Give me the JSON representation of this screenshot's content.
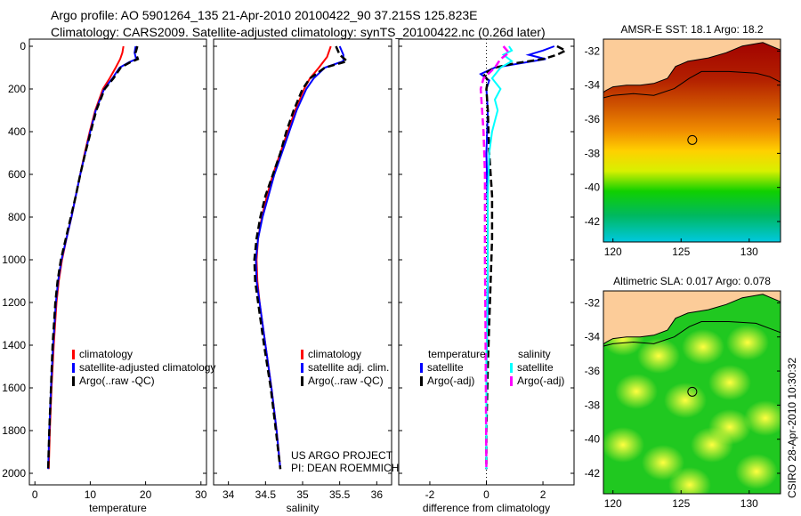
{
  "title_line1": "Argo profile: AO 5901264_135 21-Apr-2010 20100422_90 37.215S 125.823E",
  "title_line2": "Climatology: CARS2009. Satellite-adjusted climatology: synTS_20100422.nc (0.26d later)",
  "footer_stamp": "CSIRO 28-Apr-2010 10:30:32",
  "annotation": {
    "project": "US ARGO PROJECT",
    "pi": "PI: DEAN ROEMMICH"
  },
  "chart_data": [
    {
      "type": "line",
      "name": "temperature",
      "xlabel": "temperature",
      "ylabel": "",
      "xlim": [
        -1,
        31
      ],
      "ylim": [
        2000,
        0
      ],
      "xticks": [
        0,
        10,
        20,
        30
      ],
      "yticks": [
        0,
        200,
        400,
        600,
        800,
        1000,
        1200,
        1400,
        1600,
        1800,
        2000
      ],
      "legend": [
        "climatology",
        "satellite-adjusted climatology",
        "Argo(..raw -QC)"
      ],
      "series": [
        {
          "name": "climatology",
          "color": "#ff0000",
          "style": "solid",
          "depth": [
            0,
            30,
            60,
            100,
            150,
            200,
            300,
            400,
            500,
            600,
            700,
            800,
            900,
            1000,
            1100,
            1200,
            1400,
            1600,
            1800,
            1980
          ],
          "values": [
            16,
            15.8,
            15.4,
            14.6,
            13.5,
            12.3,
            10.9,
            9.9,
            9.0,
            8.2,
            7.4,
            6.6,
            5.7,
            4.9,
            4.3,
            3.9,
            3.4,
            3.0,
            2.7,
            2.5
          ]
        },
        {
          "name": "satellite-adjusted climatology",
          "color": "#0000ff",
          "style": "solid",
          "depth": [
            0,
            30,
            60,
            75,
            100,
            150,
            200,
            300,
            400,
            500,
            600,
            700,
            800,
            900,
            1000,
            1100,
            1200,
            1400,
            1600,
            1800,
            1980
          ],
          "values": [
            18.2,
            18.0,
            18.3,
            17.0,
            15.3,
            14.0,
            12.5,
            11.0,
            10.0,
            9.1,
            8.2,
            7.4,
            6.6,
            5.7,
            4.8,
            4.2,
            3.8,
            3.3,
            2.9,
            2.6,
            2.4
          ]
        },
        {
          "name": "Argo(..raw -QC)",
          "color": "#000000",
          "style": "dashed",
          "depth": [
            0,
            30,
            60,
            75,
            100,
            150,
            200,
            300,
            400,
            500,
            600,
            700,
            800,
            900,
            1000,
            1100,
            1200,
            1400,
            1600,
            1800,
            1980
          ],
          "values": [
            18.5,
            18.2,
            18.6,
            17.2,
            15.5,
            14.2,
            12.6,
            11.1,
            10.1,
            9.1,
            8.2,
            7.4,
            6.5,
            5.6,
            4.7,
            4.1,
            3.7,
            3.2,
            2.9,
            2.6,
            2.4
          ]
        }
      ]
    },
    {
      "type": "line",
      "name": "salinity",
      "xlabel": "salinity",
      "xlim": [
        33.8,
        36.2
      ],
      "ylim": [
        2000,
        0
      ],
      "xticks": [
        34,
        34.5,
        35,
        35.5,
        36
      ],
      "legend": [
        "climatology",
        "satellite adj. clim.",
        "Argo(..raw -QC)"
      ],
      "series": [
        {
          "name": "climatology",
          "color": "#ff0000",
          "style": "solid",
          "depth": [
            0,
            50,
            100,
            150,
            200,
            300,
            400,
            500,
            600,
            700,
            800,
            900,
            1000,
            1100,
            1200,
            1400,
            1600,
            1800,
            1980
          ],
          "values": [
            35.38,
            35.33,
            35.22,
            35.1,
            35.02,
            34.9,
            34.8,
            34.7,
            34.6,
            34.52,
            34.45,
            34.4,
            34.38,
            34.39,
            34.42,
            34.5,
            34.58,
            34.65,
            34.7
          ]
        },
        {
          "name": "satellite adj. clim.",
          "color": "#0000ff",
          "style": "solid",
          "depth": [
            0,
            40,
            70,
            100,
            150,
            200,
            300,
            400,
            500,
            600,
            700,
            800,
            900,
            1000,
            1100,
            1200,
            1400,
            1600,
            1800,
            1980
          ],
          "values": [
            35.5,
            35.55,
            35.55,
            35.3,
            35.15,
            35.05,
            34.92,
            34.82,
            34.72,
            34.62,
            34.54,
            34.46,
            34.4,
            34.37,
            34.38,
            34.42,
            34.5,
            34.58,
            34.65,
            34.7
          ]
        },
        {
          "name": "Argo(..raw -QC)",
          "color": "#000000",
          "style": "dashed",
          "depth": [
            0,
            40,
            70,
            100,
            150,
            200,
            300,
            400,
            500,
            600,
            700,
            800,
            900,
            1000,
            1100,
            1200,
            1400,
            1600,
            1800,
            1980
          ],
          "values": [
            35.45,
            35.5,
            35.6,
            35.3,
            35.1,
            35.0,
            34.88,
            34.78,
            34.7,
            34.6,
            34.5,
            34.43,
            34.38,
            34.35,
            34.36,
            34.4,
            34.48,
            34.57,
            34.64,
            34.7
          ]
        }
      ]
    },
    {
      "type": "line",
      "name": "difference",
      "xlabel": "difference from climatology",
      "xlim": [
        -3.1,
        3.1
      ],
      "ylim": [
        2000,
        0
      ],
      "xticks": [
        -2,
        0,
        2
      ],
      "legend_temperature_title": "temperature",
      "legend_salinity_title": "salinity",
      "legend": [
        "satellite",
        "Argo(-adj)",
        "satellite",
        "Argo(-adj)"
      ],
      "series": [
        {
          "name": "temperature satellite",
          "color": "#0000ff",
          "style": "solid",
          "depth": [
            0,
            20,
            40,
            60,
            80,
            100,
            130,
            160,
            200,
            300,
            500,
            800,
            1000,
            1200,
            1500,
            1800,
            1980
          ],
          "values": [
            2.4,
            2.0,
            1.5,
            2.1,
            1.2,
            0.3,
            -0.2,
            0.1,
            0.0,
            0.05,
            0.0,
            0.05,
            0.05,
            0.05,
            0.0,
            0.0,
            0.0
          ]
        },
        {
          "name": "temperature Argo(-adj)",
          "color": "#000000",
          "style": "dashed",
          "depth": [
            0,
            20,
            40,
            60,
            80,
            100,
            130,
            160,
            200,
            300,
            500,
            700,
            900,
            1100,
            1300,
            1500,
            1800,
            1980
          ],
          "values": [
            2.5,
            2.8,
            2.5,
            2.0,
            1.0,
            0.3,
            -0.1,
            0.05,
            0.0,
            0.05,
            0.1,
            0.2,
            0.2,
            0.15,
            0.1,
            0.05,
            0.0,
            0.0
          ]
        },
        {
          "name": "salinity satellite",
          "color": "#00ffff",
          "style": "solid",
          "depth": [
            0,
            20,
            40,
            70,
            100,
            150,
            200,
            250,
            300,
            350,
            400,
            500,
            700,
            1000,
            1500,
            1980
          ],
          "values": [
            0.8,
            0.9,
            0.6,
            0.9,
            0.5,
            0.2,
            0.5,
            0.3,
            0.4,
            0.3,
            0.2,
            0.1,
            0.05,
            0.05,
            0.0,
            0.0
          ]
        },
        {
          "name": "salinity Argo(-adj)",
          "color": "#ff00ff",
          "style": "dashed",
          "depth": [
            0,
            30,
            60,
            100,
            150,
            200,
            300,
            400,
            600,
            800,
            1000,
            1300,
            1600,
            1980
          ],
          "values": [
            0.6,
            0.8,
            0.5,
            0.3,
            -0.1,
            -0.2,
            -0.15,
            -0.1,
            -0.05,
            -0.05,
            -0.05,
            -0.03,
            -0.02,
            0.0
          ]
        }
      ]
    },
    {
      "type": "heatmap",
      "name": "sst-map",
      "title": "AMSR-E SST: 18.1 Argo: 18.2",
      "xlim": [
        119.3,
        132.3
      ],
      "ylim": [
        -43.2,
        -31.3
      ],
      "xticks": [
        120,
        125,
        130
      ],
      "yticks": [
        -32,
        -34,
        -36,
        -38,
        -40,
        -42
      ],
      "argo_location": [
        125.823,
        -37.215
      ]
    },
    {
      "type": "heatmap",
      "name": "sla-map",
      "title": "Altimetric SLA: 0.017 Argo: 0.078",
      "xlim": [
        119.3,
        132.3
      ],
      "ylim": [
        -43.2,
        -31.3
      ],
      "xticks": [
        120,
        125,
        130
      ],
      "yticks": [
        -32,
        -34,
        -36,
        -38,
        -40,
        -42
      ],
      "argo_location": [
        125.823,
        -37.215
      ]
    }
  ],
  "colors": {
    "land": "#fccc99"
  }
}
